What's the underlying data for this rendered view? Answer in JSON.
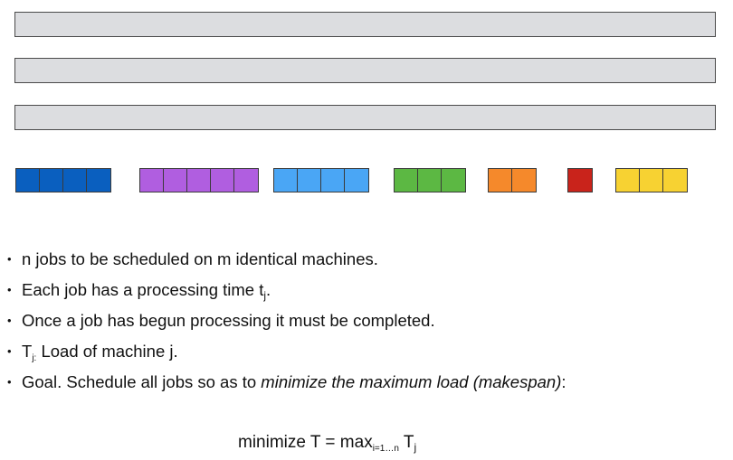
{
  "machines": [
    "",
    "",
    ""
  ],
  "jobs": [
    {
      "units": 4,
      "color": "#0a5fbf"
    },
    {
      "units": 5,
      "color": "#b05ee0"
    },
    {
      "units": 4,
      "color": "#4aa6f5"
    },
    {
      "units": 3,
      "color": "#5cb843"
    },
    {
      "units": 2,
      "color": "#f5892b"
    },
    {
      "units": 1,
      "color": "#c9231b"
    },
    {
      "units": 3,
      "color": "#f7d232"
    }
  ],
  "bullets": {
    "b1": "n jobs to be scheduled on m identical machines.",
    "b2_text": "Each job has a processing time t",
    "b2_sub": "j",
    "b2_end": ".",
    "b3": "Once a job has begun processing it must be completed.",
    "b4_T": "T",
    "b4_sub": "j:",
    "b4_rest": " Load of machine j.",
    "b5_text": "Goal. Schedule all jobs so as to ",
    "b5_em": "minimize the maximum load (makespan)",
    "b5_end": ":"
  },
  "formula": {
    "lhs": "minimize T = max",
    "range": "i=1…n",
    "T": " T",
    "sub": "j"
  }
}
